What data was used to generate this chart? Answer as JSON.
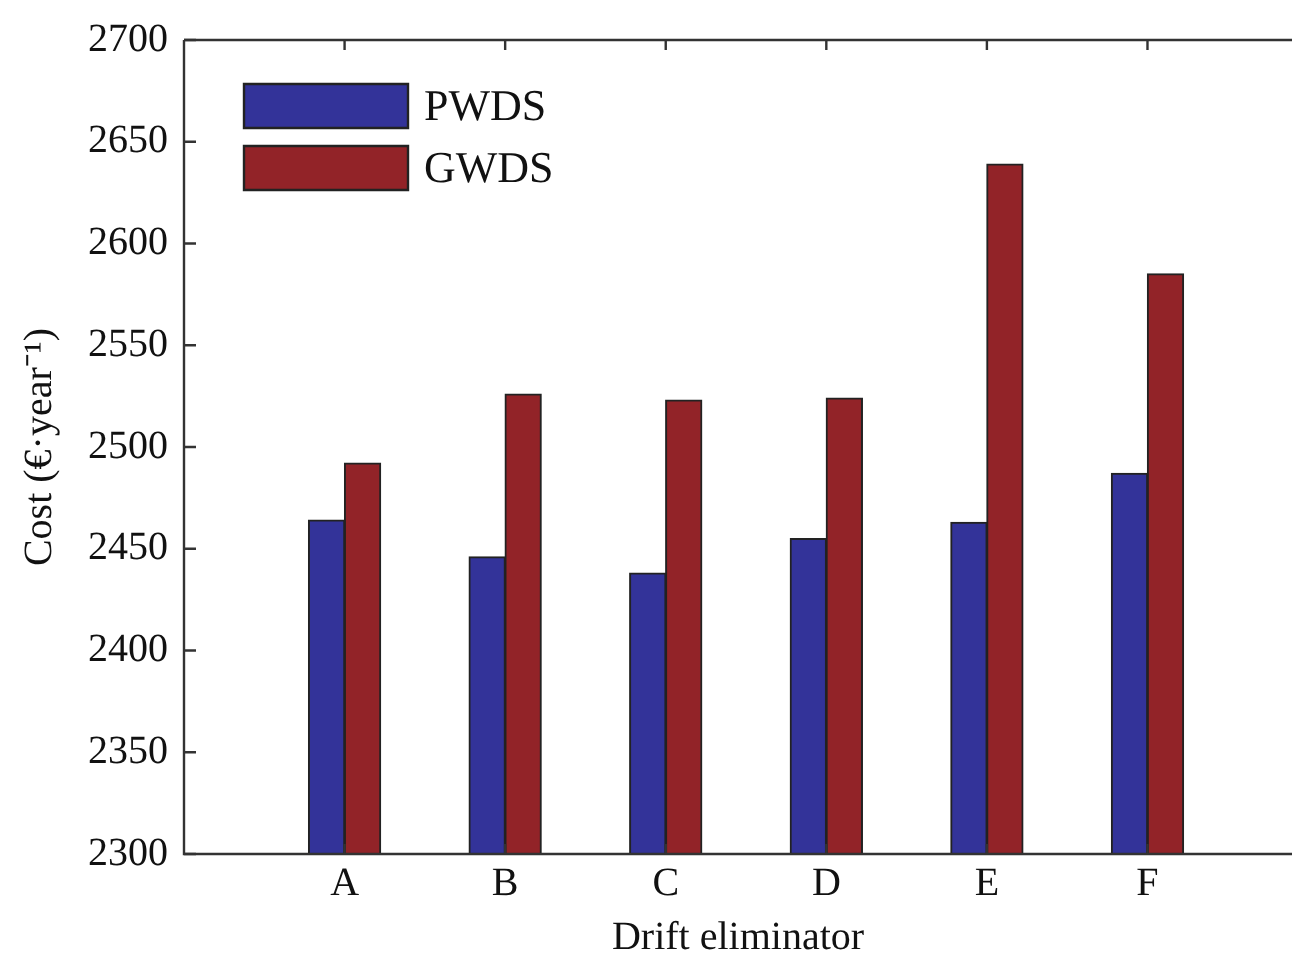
{
  "chart_data": {
    "type": "bar",
    "xlabel": "Drift eliminator",
    "ylabel": "Cost (€·year⁻¹)",
    "categories": [
      "A",
      "B",
      "C",
      "D",
      "E",
      "F"
    ],
    "series": [
      {
        "name": "PWDS",
        "color": "#333399",
        "values": [
          2464,
          2446,
          2438,
          2455,
          2463,
          2487
        ]
      },
      {
        "name": "GWDS",
        "color": "#922328",
        "values": [
          2492,
          2526,
          2523,
          2524,
          2639,
          2585
        ]
      }
    ],
    "ylim": [
      2300,
      2700
    ],
    "yticks": [
      2300,
      2350,
      2400,
      2450,
      2500,
      2550,
      2600,
      2650,
      2700
    ],
    "grid": false,
    "legend": "top left"
  }
}
